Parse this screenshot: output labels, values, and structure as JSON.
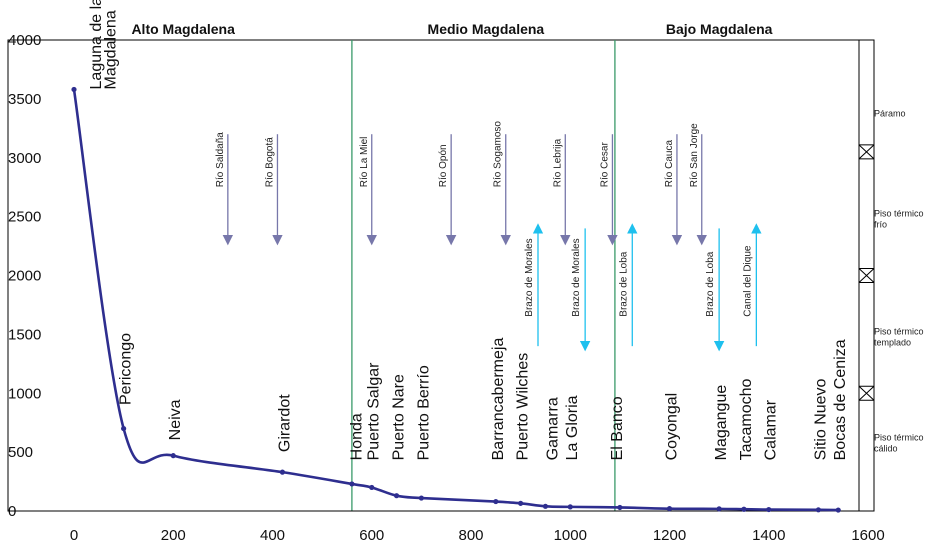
{
  "chart_data": {
    "type": "line",
    "xlim": [
      0,
      1600
    ],
    "ylim": [
      0,
      4000
    ],
    "x_ticks": [
      "0",
      "200",
      "400",
      "600",
      "800",
      "1000",
      "1200",
      "1400",
      "1600"
    ],
    "y_ticks": [
      "0",
      "500",
      "1000",
      "1500",
      "2000",
      "2500",
      "3000",
      "3500",
      "4000"
    ],
    "line_color": "#2e2e8f",
    "series": [
      {
        "x": [
          0,
          100,
          200,
          420,
          560,
          600,
          650,
          700,
          850,
          900,
          950,
          1000,
          1100,
          1200,
          1300,
          1350,
          1400,
          1500,
          1540
        ],
        "y": [
          3580,
          700,
          470,
          330,
          230,
          200,
          130,
          110,
          80,
          65,
          40,
          35,
          30,
          20,
          18,
          15,
          12,
          10,
          8
        ]
      }
    ],
    "sections": [
      {
        "label": "Alto Magdalena",
        "center": 220
      },
      {
        "label": "Medio Magdalena",
        "center": 830
      },
      {
        "label": "Bajo Magdalena",
        "center": 1300
      }
    ],
    "section_dividers": [
      560,
      1090
    ],
    "divider_color": "#3a9a6a",
    "places": [
      {
        "label": "Laguna de la",
        "x": 40,
        "y": 3580
      },
      {
        "label": "Magdalena",
        "x": 70,
        "y": 3580
      },
      {
        "label": "Pericongo",
        "x": 100,
        "y": 900
      },
      {
        "label": "Neiva",
        "x": 200,
        "y": 600
      },
      {
        "label": "Girardot",
        "x": 420,
        "y": 500
      },
      {
        "label": "Honda",
        "x": 565,
        "y": 430
      },
      {
        "label": "Puerto Salgar",
        "x": 600,
        "y": 430
      },
      {
        "label": "Puerto Nare",
        "x": 650,
        "y": 430
      },
      {
        "label": "Puerto Berrío",
        "x": 700,
        "y": 430
      },
      {
        "label": "Barrancabermeja",
        "x": 850,
        "y": 430
      },
      {
        "label": "Puerto Wilches",
        "x": 900,
        "y": 430
      },
      {
        "label": "Gamarra",
        "x": 960,
        "y": 430
      },
      {
        "label": "La Gloria",
        "x": 1000,
        "y": 430
      },
      {
        "label": "El Banco",
        "x": 1090,
        "y": 430
      },
      {
        "label": "Coyongal",
        "x": 1200,
        "y": 430
      },
      {
        "label": "Magangue",
        "x": 1300,
        "y": 430
      },
      {
        "label": "Tacamocho",
        "x": 1350,
        "y": 430
      },
      {
        "label": "Calamar",
        "x": 1400,
        "y": 430
      },
      {
        "label": "Sitio Nuevo",
        "x": 1500,
        "y": 430
      },
      {
        "label": "Bocas de Ceniza",
        "x": 1540,
        "y": 430
      }
    ],
    "rivers": [
      {
        "label": "Río Saldaña",
        "x": 310
      },
      {
        "label": "Río Bogotá",
        "x": 410
      },
      {
        "label": "Río La Miel",
        "x": 600
      },
      {
        "label": "Río Opón",
        "x": 760
      },
      {
        "label": "Río Sogamoso",
        "x": 870
      },
      {
        "label": "Río Lebrija",
        "x": 990
      },
      {
        "label": "Río Cesar",
        "x": 1085
      },
      {
        "label": "Río Cauca",
        "x": 1215
      },
      {
        "label": "Río San Jorge",
        "x": 1265
      }
    ],
    "river_color": "#7777aa",
    "branches": [
      {
        "label": "Brazo de Morales",
        "x": 935,
        "dir": "up"
      },
      {
        "label": "Brazo de Morales",
        "x": 1030,
        "dir": "down"
      },
      {
        "label": "Brazo de Loba",
        "x": 1125,
        "dir": "up"
      },
      {
        "label": "Brazo de Loba",
        "x": 1300,
        "dir": "down"
      },
      {
        "label": "Canal del Dique",
        "x": 1375,
        "dir": "up"
      }
    ],
    "branch_color": "#1ec0ee",
    "zones": [
      {
        "lines": [
          "Páramo"
        ],
        "y": 3350
      },
      {
        "lines": [
          "Piso térmico",
          "frío"
        ],
        "y": 2500
      },
      {
        "lines": [
          "Piso térmico",
          "templado"
        ],
        "y": 1500
      },
      {
        "lines": [
          "Piso térmico",
          "cálido"
        ],
        "y": 600
      }
    ],
    "zone_marks": [
      3050,
      2000,
      1000
    ]
  }
}
